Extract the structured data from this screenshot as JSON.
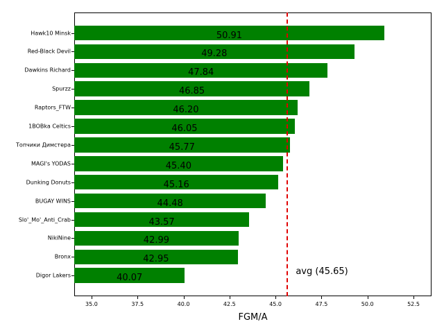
{
  "chart_data": {
    "type": "bar",
    "orientation": "horizontal",
    "title": "",
    "xlabel": "FGM/A",
    "ylabel": "",
    "xlim": [
      34.06,
      53.48
    ],
    "xticks": [
      "35.0",
      "37.5",
      "40.0",
      "42.5",
      "45.0",
      "47.5",
      "50.0",
      "52.5"
    ],
    "categories": [
      "Hawk10 Minsk",
      "Red-Black Devil",
      "Dawkins Richard",
      "Spurzz",
      "Raptors_FTW",
      "1BOBka Celtics",
      "Топчики Димстера",
      "MAGI's YODAS",
      "Dunking Donuts",
      "BUGAY WINS",
      "Slo'_Mo'_Anti_Crab",
      "NikiNine",
      "Bronx",
      "Digor Lakers"
    ],
    "values": [
      50.91,
      49.28,
      47.84,
      46.85,
      46.2,
      46.05,
      45.77,
      45.4,
      45.16,
      44.48,
      43.57,
      42.99,
      42.95,
      40.07
    ],
    "value_labels": [
      "50.91",
      "49.28",
      "47.84",
      "46.85",
      "46.20",
      "46.05",
      "45.77",
      "45.40",
      "45.16",
      "44.48",
      "43.57",
      "42.99",
      "42.95",
      "40.07"
    ],
    "bar_color": "#008000",
    "average": {
      "value": 45.65,
      "label": "avg (45.65)",
      "color": "#e00000",
      "style": "dashed"
    },
    "grid": false,
    "legend": null
  }
}
